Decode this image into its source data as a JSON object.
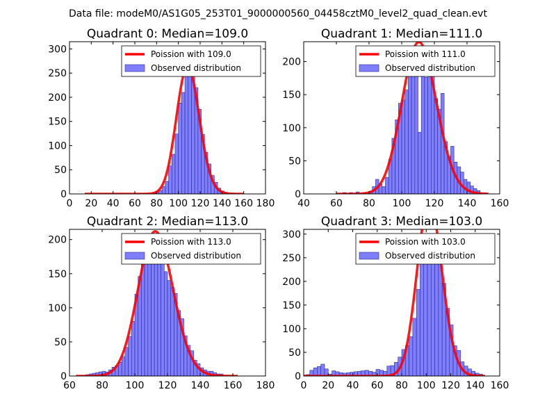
{
  "figure": {
    "suptitle": "Data file: modeM0/AS1G05_253T01_9000000560_04458cztM0_level2_quad_clean.evt"
  },
  "chart_data": [
    {
      "type": "bar",
      "title": "Quadrant 0: Median=109.0",
      "legend_line": "Poission with 109.0",
      "legend_bars": "Observed distribution",
      "legend_position": "top-right",
      "xlim": [
        0,
        180
      ],
      "ylim": [
        0,
        315
      ],
      "xticks": [
        0,
        20,
        40,
        60,
        80,
        100,
        120,
        140,
        160,
        180
      ],
      "yticks": [
        0,
        50,
        100,
        150,
        200,
        250,
        300
      ],
      "bin_width": 3,
      "bins": [
        [
          76,
          2
        ],
        [
          79,
          4
        ],
        [
          82,
          7
        ],
        [
          85,
          15
        ],
        [
          88,
          26
        ],
        [
          91,
          58
        ],
        [
          94,
          82
        ],
        [
          97,
          124
        ],
        [
          100,
          188
        ],
        [
          103,
          210
        ],
        [
          106,
          275
        ],
        [
          109,
          300
        ],
        [
          112,
          262
        ],
        [
          115,
          220
        ],
        [
          118,
          175
        ],
        [
          121,
          123
        ],
        [
          124,
          86
        ],
        [
          127,
          62
        ],
        [
          130,
          38
        ],
        [
          133,
          24
        ],
        [
          136,
          12
        ],
        [
          139,
          6
        ],
        [
          142,
          3
        ]
      ],
      "poisson": {
        "mu": 109.0,
        "scale": 3,
        "x_range": [
          14,
          160
        ]
      }
    },
    {
      "type": "bar",
      "title": "Quadrant 1: Median=111.0",
      "legend_line": "Poission with 111.0",
      "legend_bars": "Observed distribution",
      "legend_position": "top-right",
      "xlim": [
        40,
        160
      ],
      "ylim": [
        0,
        230
      ],
      "xticks": [
        40,
        60,
        80,
        100,
        120,
        140,
        160
      ],
      "yticks": [
        0,
        50,
        100,
        150,
        200
      ],
      "bin_width": 2,
      "bins": [
        [
          64,
          2
        ],
        [
          68,
          2
        ],
        [
          72,
          3
        ],
        [
          76,
          2
        ],
        [
          80,
          4
        ],
        [
          82,
          11
        ],
        [
          84,
          22
        ],
        [
          86,
          15
        ],
        [
          88,
          11
        ],
        [
          90,
          25
        ],
        [
          92,
          52
        ],
        [
          94,
          84
        ],
        [
          96,
          112
        ],
        [
          98,
          137
        ],
        [
          100,
          142
        ],
        [
          102,
          157
        ],
        [
          104,
          186
        ],
        [
          106,
          190
        ],
        [
          108,
          184
        ],
        [
          110,
          93
        ],
        [
          112,
          218
        ],
        [
          114,
          176
        ],
        [
          116,
          198
        ],
        [
          118,
          184
        ],
        [
          120,
          144
        ],
        [
          122,
          128
        ],
        [
          124,
          152
        ],
        [
          126,
          79
        ],
        [
          128,
          57
        ],
        [
          130,
          72
        ],
        [
          132,
          48
        ],
        [
          134,
          41
        ],
        [
          136,
          33
        ],
        [
          138,
          22
        ],
        [
          140,
          18
        ],
        [
          142,
          12
        ],
        [
          144,
          8
        ],
        [
          146,
          5
        ]
      ],
      "poisson": {
        "mu": 111.0,
        "scale": 2,
        "x_range": [
          60,
          153
        ]
      }
    },
    {
      "type": "bar",
      "title": "Quadrant 2: Median=113.0",
      "legend_line": "Poission with 113.0",
      "legend_bars": "Observed distribution",
      "legend_position": "top-right",
      "xlim": [
        60,
        180
      ],
      "ylim": [
        0,
        215
      ],
      "xticks": [
        60,
        80,
        100,
        120,
        140,
        160,
        180
      ],
      "yticks": [
        0,
        50,
        100,
        150,
        200
      ],
      "bin_width": 2,
      "bins": [
        [
          70,
          2
        ],
        [
          72,
          3
        ],
        [
          74,
          4
        ],
        [
          76,
          5
        ],
        [
          78,
          6
        ],
        [
          80,
          7
        ],
        [
          82,
          6
        ],
        [
          84,
          9
        ],
        [
          86,
          13
        ],
        [
          88,
          15
        ],
        [
          90,
          20
        ],
        [
          92,
          28
        ],
        [
          94,
          42
        ],
        [
          96,
          58
        ],
        [
          98,
          80
        ],
        [
          100,
          120
        ],
        [
          102,
          146
        ],
        [
          104,
          172
        ],
        [
          106,
          170
        ],
        [
          108,
          183
        ],
        [
          110,
          201
        ],
        [
          112,
          204
        ],
        [
          114,
          197
        ],
        [
          116,
          182
        ],
        [
          118,
          153
        ],
        [
          120,
          140
        ],
        [
          122,
          130
        ],
        [
          124,
          121
        ],
        [
          126,
          96
        ],
        [
          128,
          84
        ],
        [
          130,
          59
        ],
        [
          132,
          45
        ],
        [
          134,
          37
        ],
        [
          136,
          23
        ],
        [
          138,
          18
        ],
        [
          140,
          12
        ],
        [
          142,
          9
        ],
        [
          144,
          7
        ],
        [
          146,
          7
        ],
        [
          148,
          5
        ],
        [
          150,
          3
        ],
        [
          152,
          3
        ]
      ],
      "poisson": {
        "mu": 113.0,
        "scale": 2,
        "x_range": [
          64,
          163
        ]
      }
    },
    {
      "type": "bar",
      "title": "Quadrant 3: Median=103.0",
      "legend_line": "Poission with 103.0",
      "legend_bars": "Observed distribution",
      "legend_position": "top-right",
      "xlim": [
        0,
        160
      ],
      "ylim": [
        0,
        310
      ],
      "xticks": [
        0,
        20,
        40,
        60,
        80,
        100,
        120,
        140,
        160
      ],
      "yticks": [
        0,
        50,
        100,
        150,
        200,
        250,
        300
      ],
      "bin_width": 3,
      "bins": [
        [
          2,
          3
        ],
        [
          5,
          12
        ],
        [
          8,
          17
        ],
        [
          11,
          20
        ],
        [
          14,
          25
        ],
        [
          17,
          15
        ],
        [
          20,
          4
        ],
        [
          23,
          11
        ],
        [
          26,
          9
        ],
        [
          29,
          7
        ],
        [
          32,
          6
        ],
        [
          35,
          7
        ],
        [
          38,
          8
        ],
        [
          41,
          9
        ],
        [
          44,
          10
        ],
        [
          47,
          11
        ],
        [
          50,
          12
        ],
        [
          53,
          10
        ],
        [
          56,
          8
        ],
        [
          59,
          14
        ],
        [
          62,
          12
        ],
        [
          65,
          10
        ],
        [
          68,
          21
        ],
        [
          71,
          22
        ],
        [
          74,
          29
        ],
        [
          77,
          40
        ],
        [
          80,
          56
        ],
        [
          83,
          64
        ],
        [
          86,
          83
        ],
        [
          89,
          122
        ],
        [
          92,
          183
        ],
        [
          95,
          241
        ],
        [
          98,
          265
        ],
        [
          101,
          292
        ],
        [
          104,
          278
        ],
        [
          107,
          287
        ],
        [
          110,
          248
        ],
        [
          113,
          196
        ],
        [
          116,
          143
        ],
        [
          119,
          108
        ],
        [
          122,
          64
        ],
        [
          125,
          54
        ],
        [
          128,
          30
        ],
        [
          131,
          21
        ],
        [
          134,
          15
        ],
        [
          137,
          10
        ],
        [
          140,
          6
        ],
        [
          143,
          4
        ]
      ],
      "poisson": {
        "mu": 103.0,
        "scale": 3,
        "x_range": [
          0,
          148
        ]
      }
    }
  ]
}
